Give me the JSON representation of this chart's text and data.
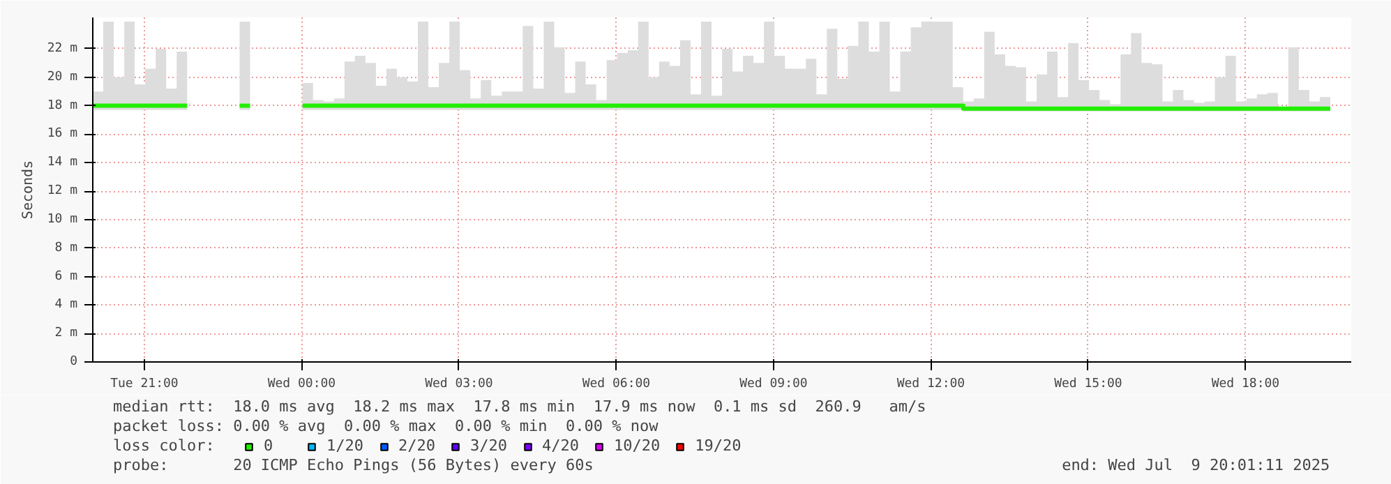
{
  "chart_data": {
    "type": "step",
    "ylabel": "Seconds",
    "legend_title": "loss color:",
    "legend": "bottom",
    "grid": true,
    "marker": "none",
    "xlim": [
      "2025-07-08T20:01",
      "2025-07-09T20:01"
    ],
    "xticks": [
      {
        "value": "2025-07-08T21:00",
        "label": "Tue 21:00"
      },
      {
        "value": "2025-07-09T00:00",
        "label": "Wed 00:00"
      },
      {
        "value": "2025-07-09T03:00",
        "label": "Wed 03:00"
      },
      {
        "value": "2025-07-09T06:00",
        "label": "Wed 06:00"
      },
      {
        "value": "2025-07-09T09:00",
        "label": "Wed 09:00"
      },
      {
        "value": "2025-07-09T12:00",
        "label": "Wed 12:00"
      },
      {
        "value": "2025-07-09T15:00",
        "label": "Wed 15:00"
      },
      {
        "value": "2025-07-09T18:00",
        "label": "Wed 18:00"
      }
    ],
    "ylim": [
      0,
      24.2
    ],
    "yticks": [
      0,
      {
        "value": 2,
        "label": "2 m"
      },
      {
        "value": 4,
        "label": "4 m"
      },
      {
        "value": 6,
        "label": "6 m"
      },
      {
        "value": 8,
        "label": "8 m"
      },
      {
        "value": 10,
        "label": "10 m"
      },
      {
        "value": 12,
        "label": "12 m"
      },
      {
        "value": 14,
        "label": "14 m"
      },
      {
        "value": 16,
        "label": "16 m"
      },
      {
        "value": 18,
        "label": "18 m"
      },
      {
        "value": 20,
        "label": "20 m"
      },
      {
        "value": 22,
        "label": "22 m"
      }
    ],
    "x": [
      "2025-07-08T20:01",
      "2025-07-08T20:13",
      "2025-07-08T20:25",
      "2025-07-08T20:37",
      "2025-07-08T20:49",
      "2025-07-08T21:01",
      "2025-07-08T21:13",
      "2025-07-08T21:25",
      "2025-07-08T21:37",
      "2025-07-08T21:49",
      "2025-07-08T22:01",
      "2025-07-08T22:13",
      "2025-07-08T22:25",
      "2025-07-08T22:37",
      "2025-07-08T22:49",
      "2025-07-08T23:01",
      "2025-07-08T23:13",
      "2025-07-08T23:25",
      "2025-07-08T23:37",
      "2025-07-08T23:49",
      "2025-07-09T00:01",
      "2025-07-09T00:13",
      "2025-07-09T00:25",
      "2025-07-09T00:37",
      "2025-07-09T00:49",
      "2025-07-09T01:01",
      "2025-07-09T01:13",
      "2025-07-09T01:25",
      "2025-07-09T01:37",
      "2025-07-09T01:49",
      "2025-07-09T02:01",
      "2025-07-09T02:13",
      "2025-07-09T02:25",
      "2025-07-09T02:37",
      "2025-07-09T02:49",
      "2025-07-09T03:01",
      "2025-07-09T03:13",
      "2025-07-09T03:25",
      "2025-07-09T03:37",
      "2025-07-09T03:49",
      "2025-07-09T04:01",
      "2025-07-09T04:13",
      "2025-07-09T04:25",
      "2025-07-09T04:37",
      "2025-07-09T04:49",
      "2025-07-09T05:01",
      "2025-07-09T05:13",
      "2025-07-09T05:25",
      "2025-07-09T05:37",
      "2025-07-09T05:49",
      "2025-07-09T06:01",
      "2025-07-09T06:13",
      "2025-07-09T06:25",
      "2025-07-09T06:37",
      "2025-07-09T06:49",
      "2025-07-09T07:01",
      "2025-07-09T07:13",
      "2025-07-09T07:25",
      "2025-07-09T07:37",
      "2025-07-09T07:49",
      "2025-07-09T08:01",
      "2025-07-09T08:13",
      "2025-07-09T08:25",
      "2025-07-09T08:37",
      "2025-07-09T08:49",
      "2025-07-09T09:01",
      "2025-07-09T09:13",
      "2025-07-09T09:25",
      "2025-07-09T09:37",
      "2025-07-09T09:49",
      "2025-07-09T10:01",
      "2025-07-09T10:13",
      "2025-07-09T10:25",
      "2025-07-09T10:37",
      "2025-07-09T10:49",
      "2025-07-09T11:01",
      "2025-07-09T11:13",
      "2025-07-09T11:25",
      "2025-07-09T11:37",
      "2025-07-09T11:49",
      "2025-07-09T12:01",
      "2025-07-09T12:13",
      "2025-07-09T12:25",
      "2025-07-09T12:37",
      "2025-07-09T12:49",
      "2025-07-09T13:01",
      "2025-07-09T13:13",
      "2025-07-09T13:25",
      "2025-07-09T13:37",
      "2025-07-09T13:49",
      "2025-07-09T14:01",
      "2025-07-09T14:13",
      "2025-07-09T14:25",
      "2025-07-09T14:37",
      "2025-07-09T14:49",
      "2025-07-09T15:01",
      "2025-07-09T15:13",
      "2025-07-09T15:25",
      "2025-07-09T15:37",
      "2025-07-09T15:49",
      "2025-07-09T16:01",
      "2025-07-09T16:13",
      "2025-07-09T16:25",
      "2025-07-09T16:37",
      "2025-07-09T16:49",
      "2025-07-09T17:01",
      "2025-07-09T17:13",
      "2025-07-09T17:25",
      "2025-07-09T17:37",
      "2025-07-09T17:49",
      "2025-07-09T18:01",
      "2025-07-09T18:13",
      "2025-07-09T18:25",
      "2025-07-09T18:37",
      "2025-07-09T18:49",
      "2025-07-09T19:01",
      "2025-07-09T19:13",
      "2025-07-09T19:25",
      "2025-07-09T19:37"
    ],
    "series": [
      {
        "name": "0",
        "color": "#22ee00",
        "values": [
          18.0,
          18.0,
          18.0,
          18.0,
          18.0,
          18.0,
          18.0,
          18.0,
          18.0,
          18.0,
          null,
          null,
          null,
          null,
          18.0,
          18.0,
          null,
          null,
          null,
          null,
          18.0,
          18.0,
          18.0,
          18.0,
          18.0,
          18.0,
          18.0,
          18.0,
          18.0,
          18.0,
          18.0,
          18.0,
          18.0,
          18.0,
          18.0,
          18.0,
          18.0,
          18.0,
          18.0,
          18.0,
          18.0,
          18.0,
          18.0,
          18.0,
          18.0,
          18.0,
          18.0,
          18.0,
          18.0,
          18.0,
          18.0,
          18.0,
          18.0,
          18.0,
          18.0,
          18.0,
          18.0,
          18.0,
          18.0,
          18.0,
          18.0,
          18.0,
          18.0,
          18.0,
          18.0,
          18.0,
          18.0,
          18.0,
          18.0,
          18.0,
          18.0,
          18.0,
          18.0,
          18.0,
          18.0,
          18.0,
          18.0,
          18.0,
          18.0,
          18.0,
          18.0,
          18.0,
          18.0,
          17.8,
          17.8,
          17.8,
          17.8,
          17.8,
          17.8,
          17.8,
          17.8,
          17.8,
          17.8,
          17.8,
          17.8,
          17.8,
          17.8,
          17.8,
          17.8,
          17.8,
          17.8,
          17.8,
          17.8,
          17.8,
          17.8,
          17.8,
          17.8,
          17.8,
          17.8,
          17.8,
          17.8,
          17.8,
          17.8,
          17.8,
          17.8,
          17.8,
          17.8,
          17.8,
          17.8
        ],
        "lower": [
          17.7,
          17.7,
          17.7,
          17.7,
          17.7,
          17.7,
          17.7,
          17.7,
          17.7,
          17.7,
          null,
          null,
          null,
          null,
          17.7,
          17.7,
          null,
          null,
          null,
          null,
          17.7,
          17.7,
          17.7,
          17.7,
          17.7,
          17.7,
          17.7,
          17.7,
          17.7,
          17.7,
          17.7,
          17.7,
          17.7,
          17.7,
          17.7,
          17.7,
          17.7,
          17.7,
          17.7,
          17.7,
          17.7,
          17.7,
          17.7,
          17.7,
          17.7,
          17.7,
          17.7,
          17.7,
          17.7,
          17.7,
          17.7,
          17.7,
          17.7,
          17.7,
          17.7,
          17.7,
          17.7,
          17.7,
          17.7,
          17.7,
          17.7,
          17.7,
          17.7,
          17.7,
          17.7,
          17.7,
          17.7,
          17.7,
          17.7,
          17.7,
          17.7,
          17.7,
          17.7,
          17.7,
          17.7,
          17.7,
          17.7,
          17.7,
          17.7,
          17.7,
          17.7,
          17.7,
          17.7,
          17.6,
          17.6,
          17.6,
          17.6,
          17.6,
          17.6,
          17.6,
          17.6,
          17.6,
          17.6,
          17.6,
          17.6,
          17.6,
          17.6,
          17.6,
          17.6,
          17.6,
          17.6,
          17.6,
          17.6,
          17.6,
          17.6,
          17.6,
          17.6,
          17.6,
          17.6,
          17.6,
          17.6,
          17.6,
          17.6,
          17.6,
          17.6,
          17.6,
          17.6,
          17.6,
          17.6
        ],
        "upper": [
          19.0,
          23.9,
          20.0,
          23.9,
          19.5,
          20.6,
          22.0,
          19.2,
          21.8,
          18.5,
          null,
          null,
          null,
          null,
          23.9,
          18.3,
          null,
          null,
          null,
          null,
          19.6,
          18.4,
          18.3,
          18.5,
          21.1,
          21.5,
          21.0,
          19.4,
          20.6,
          20.0,
          19.7,
          23.9,
          19.3,
          21.0,
          23.9,
          20.5,
          18.5,
          19.8,
          18.7,
          19.0,
          19.0,
          23.6,
          19.2,
          23.9,
          22.1,
          18.9,
          21.1,
          19.5,
          18.4,
          21.2,
          21.7,
          21.9,
          23.9,
          20.0,
          21.1,
          20.8,
          22.6,
          18.8,
          23.9,
          18.7,
          22.0,
          20.4,
          21.5,
          21.0,
          23.9,
          21.5,
          20.6,
          20.6,
          21.3,
          18.8,
          23.4,
          19.9,
          22.2,
          23.9,
          21.8,
          23.9,
          19.0,
          21.8,
          23.5,
          23.9,
          23.9,
          23.9,
          19.3,
          18.3,
          18.5,
          23.2,
          21.6,
          20.8,
          20.7,
          18.3,
          20.2,
          21.8,
          18.6,
          22.4,
          19.8,
          19.1,
          18.4,
          18.1,
          21.6,
          23.1,
          21.0,
          20.9,
          18.3,
          19.1,
          18.4,
          18.2,
          18.3,
          20.0,
          21.5,
          18.3,
          18.5,
          18.8,
          18.9,
          17.9,
          22.1,
          19.1,
          18.3,
          18.6,
          19.7
        ]
      },
      {
        "name": "1/20",
        "color": "#00b8ff",
        "values": [
          null,
          null,
          null,
          null,
          null,
          null,
          null,
          null,
          null,
          null,
          null,
          null,
          null,
          null,
          null,
          null,
          null,
          null,
          null,
          null,
          null,
          null,
          null,
          null,
          null,
          null,
          null,
          null,
          null,
          null,
          null,
          null,
          null,
          null,
          null,
          null,
          null,
          null,
          null,
          null,
          null,
          null,
          null,
          null,
          null,
          null,
          null,
          null,
          null,
          null,
          null,
          null,
          null,
          null,
          null,
          null,
          null,
          null,
          null,
          null,
          null,
          null,
          null,
          null,
          null,
          null,
          null,
          null,
          null,
          null,
          null,
          null,
          null,
          null,
          null,
          null,
          null,
          null,
          null,
          null,
          null,
          null,
          null,
          null,
          null,
          null,
          null,
          null,
          null,
          null,
          null,
          null,
          null,
          null,
          null,
          null,
          null,
          null,
          null,
          null,
          null,
          null,
          null,
          null,
          null,
          null,
          null,
          null,
          null,
          null,
          null,
          null,
          null,
          null,
          null,
          null,
          null,
          null,
          null
        ]
      },
      {
        "name": "2/20",
        "color": "#0059ff",
        "values": [
          null,
          null,
          null,
          null,
          null,
          null,
          null,
          null,
          null,
          null,
          null,
          null,
          null,
          null,
          null,
          null,
          null,
          null,
          null,
          null,
          null,
          null,
          null,
          null,
          null,
          null,
          null,
          null,
          null,
          null,
          null,
          null,
          null,
          null,
          null,
          null,
          null,
          null,
          null,
          null,
          null,
          null,
          null,
          null,
          null,
          null,
          null,
          null,
          null,
          null,
          null,
          null,
          null,
          null,
          null,
          null,
          null,
          null,
          null,
          null,
          null,
          null,
          null,
          null,
          null,
          null,
          null,
          null,
          null,
          null,
          null,
          null,
          null,
          null,
          null,
          null,
          null,
          null,
          null,
          null,
          null,
          null,
          null,
          null,
          null,
          null,
          null,
          null,
          null,
          null,
          null,
          null,
          null,
          null,
          null,
          null,
          null,
          null,
          null,
          null,
          null,
          null,
          null,
          null,
          null,
          null,
          null,
          null,
          null,
          null,
          null,
          null,
          null,
          null,
          null,
          null,
          null,
          null,
          null
        ]
      },
      {
        "name": "3/20",
        "color": "#5e00ff",
        "values": [
          null,
          null,
          null,
          null,
          null,
          null,
          null,
          null,
          null,
          null,
          null,
          null,
          null,
          null,
          null,
          null,
          null,
          null,
          null,
          null,
          null,
          null,
          null,
          null,
          null,
          null,
          null,
          null,
          null,
          null,
          null,
          null,
          null,
          null,
          null,
          null,
          null,
          null,
          null,
          null,
          null,
          null,
          null,
          null,
          null,
          null,
          null,
          null,
          null,
          null,
          null,
          null,
          null,
          null,
          null,
          null,
          null,
          null,
          null,
          null,
          null,
          null,
          null,
          null,
          null,
          null,
          null,
          null,
          null,
          null,
          null,
          null,
          null,
          null,
          null,
          null,
          null,
          null,
          null,
          null,
          null,
          null,
          null,
          null,
          null,
          null,
          null,
          null,
          null,
          null,
          null,
          null,
          null,
          null,
          null,
          null,
          null,
          null,
          null,
          null,
          null,
          null,
          null,
          null,
          null,
          null,
          null,
          null,
          null,
          null,
          null,
          null,
          null,
          null,
          null,
          null,
          null,
          null,
          null
        ]
      },
      {
        "name": "4/20",
        "color": "#7e00ff",
        "values": [
          null,
          null,
          null,
          null,
          null,
          null,
          null,
          null,
          null,
          null,
          null,
          null,
          null,
          null,
          null,
          null,
          null,
          null,
          null,
          null,
          null,
          null,
          null,
          null,
          null,
          null,
          null,
          null,
          null,
          null,
          null,
          null,
          null,
          null,
          null,
          null,
          null,
          null,
          null,
          null,
          null,
          null,
          null,
          null,
          null,
          null,
          null,
          null,
          null,
          null,
          null,
          null,
          null,
          null,
          null,
          null,
          null,
          null,
          null,
          null,
          null,
          null,
          null,
          null,
          null,
          null,
          null,
          null,
          null,
          null,
          null,
          null,
          null,
          null,
          null,
          null,
          null,
          null,
          null,
          null,
          null,
          null,
          null,
          null,
          null,
          null,
          null,
          null,
          null,
          null,
          null,
          null,
          null,
          null,
          null,
          null,
          null,
          null,
          null,
          null,
          null,
          null,
          null,
          null,
          null,
          null,
          null,
          null,
          null,
          null,
          null,
          null,
          null,
          null,
          null,
          null,
          null,
          null,
          null
        ]
      },
      {
        "name": "10/20",
        "color": "#dd00ff",
        "values": [
          null,
          null,
          null,
          null,
          null,
          null,
          null,
          null,
          null,
          null,
          null,
          null,
          null,
          null,
          null,
          null,
          null,
          null,
          null,
          null,
          null,
          null,
          null,
          null,
          null,
          null,
          null,
          null,
          null,
          null,
          null,
          null,
          null,
          null,
          null,
          null,
          null,
          null,
          null,
          null,
          null,
          null,
          null,
          null,
          null,
          null,
          null,
          null,
          null,
          null,
          null,
          null,
          null,
          null,
          null,
          null,
          null,
          null,
          null,
          null,
          null,
          null,
          null,
          null,
          null,
          null,
          null,
          null,
          null,
          null,
          null,
          null,
          null,
          null,
          null,
          null,
          null,
          null,
          null,
          null,
          null,
          null,
          null,
          null,
          null,
          null,
          null,
          null,
          null,
          null,
          null,
          null,
          null,
          null,
          null,
          null,
          null,
          null,
          null,
          null,
          null,
          null,
          null,
          null,
          null,
          null,
          null,
          null,
          null,
          null,
          null,
          null,
          null,
          null,
          null,
          null,
          null,
          null,
          null
        ]
      },
      {
        "name": "19/20",
        "color": "#ff0000",
        "values": [
          null,
          null,
          null,
          null,
          null,
          null,
          null,
          null,
          null,
          null,
          null,
          null,
          null,
          null,
          null,
          null,
          null,
          null,
          null,
          null,
          null,
          null,
          null,
          null,
          null,
          null,
          null,
          null,
          null,
          null,
          null,
          null,
          null,
          null,
          null,
          null,
          null,
          null,
          null,
          null,
          null,
          null,
          null,
          null,
          null,
          null,
          null,
          null,
          null,
          null,
          null,
          null,
          null,
          null,
          null,
          null,
          null,
          null,
          null,
          null,
          null,
          null,
          null,
          null,
          null,
          null,
          null,
          null,
          null,
          null,
          null,
          null,
          null,
          null,
          null,
          null,
          null,
          null,
          null,
          null,
          null,
          null,
          null,
          null,
          null,
          null,
          null,
          null,
          null,
          null,
          null,
          null,
          null,
          null,
          null,
          null,
          null,
          null,
          null,
          null,
          null,
          null,
          null,
          null,
          null,
          null,
          null,
          null,
          null,
          null,
          null,
          null,
          null,
          null,
          null,
          null,
          null,
          null,
          null
        ]
      }
    ],
    "annotations": [
      "median rtt:  18.0 ms avg  18.2 ms max  17.8 ms min  17.9 ms now  0.1 ms sd  260.9   am/s",
      "packet loss: 0.00 % avg  0.00 % max  0.00 % min  0.00 % now",
      "probe:       20 ICMP Echo Pings (56 Bytes) every 60s",
      "end: Wed Jul  9 20:01:11 2025"
    ]
  }
}
